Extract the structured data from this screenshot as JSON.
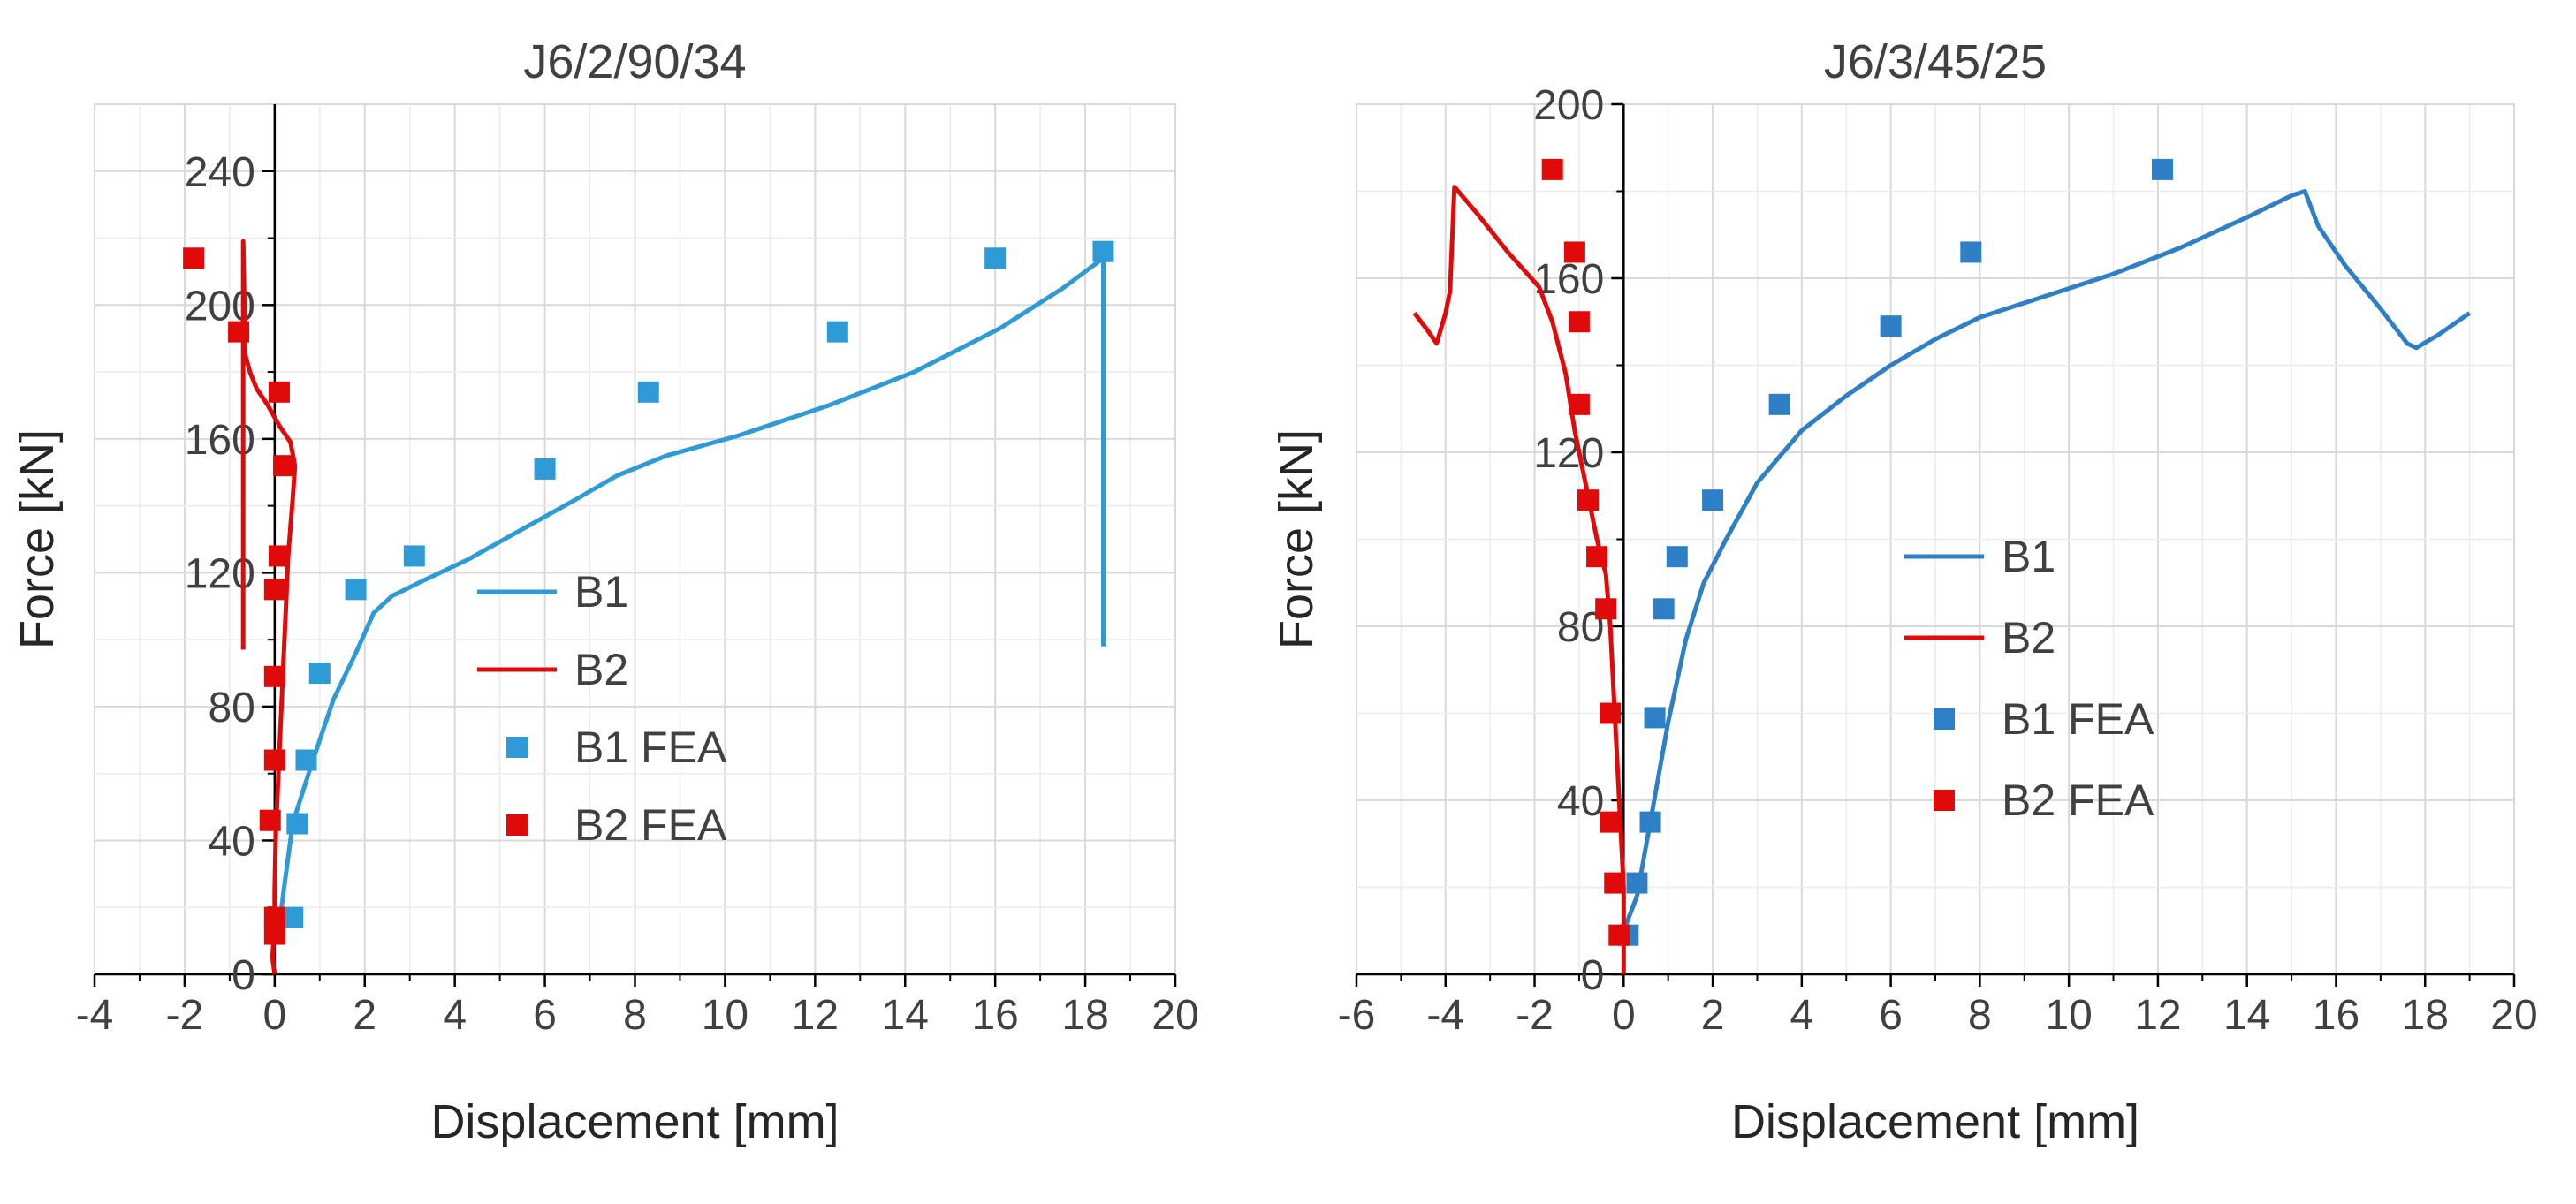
{
  "chart_data": [
    {
      "type": "scatter",
      "title": "J6/2/90/34",
      "xlabel": "Displacement  [mm]",
      "ylabel": "Force [kN]",
      "xlim": [
        -4,
        20
      ],
      "ylim": [
        0,
        260
      ],
      "xticks": [
        -4,
        -2,
        0,
        2,
        4,
        6,
        8,
        10,
        12,
        14,
        16,
        18,
        20
      ],
      "yticks": [
        0,
        40,
        80,
        120,
        160,
        200,
        240
      ],
      "xtick_labels": [
        "-4",
        "-2",
        "0",
        "2",
        "4",
        "6",
        "8",
        "10",
        "12",
        "14",
        "16",
        "18",
        "20"
      ],
      "ytick_labels": [
        "0",
        "40",
        "80",
        "120",
        "160",
        "200",
        "240"
      ],
      "grid": true,
      "legend_position": "center-right",
      "series": [
        {
          "name": "B1",
          "kind": "line",
          "color": "#2E9BD6",
          "x": [
            0.1,
            0.2,
            0.4,
            0.8,
            1.3,
            1.8,
            2.2,
            2.6,
            3.2,
            4.3,
            5.5,
            6.7,
            7.6,
            8.7,
            10.3,
            12.3,
            14.2,
            16.1,
            17.5,
            18.4,
            18.4,
            18.4
          ],
          "y": [
            14,
            25,
            45,
            62,
            82,
            96,
            108,
            113,
            117,
            124,
            133,
            142,
            149,
            155,
            161,
            170,
            180,
            193,
            205,
            214,
            216,
            98
          ]
        },
        {
          "name": "B2",
          "kind": "line",
          "color": "#E00A0A",
          "x": [
            -0.7,
            -0.7,
            -0.65,
            -0.55,
            -0.4,
            -0.15,
            0.1,
            0.35,
            0.45,
            0.4,
            0.3,
            0.25,
            0.2,
            0.15,
            0.1,
            0.05,
            0.02,
            0.0,
            0.0,
            -0.05,
            0.0
          ],
          "y": [
            97,
            219,
            185,
            180,
            175,
            170,
            164,
            159,
            152,
            142,
            125,
            110,
            95,
            80,
            65,
            50,
            40,
            25,
            15,
            5,
            0
          ]
        },
        {
          "name": "B1 FEA",
          "kind": "scatter",
          "color": "#2E9BD6",
          "x": [
            0.4,
            0.5,
            0.7,
            1.0,
            1.8,
            3.1,
            6.0,
            8.3,
            12.5,
            16.0,
            18.4
          ],
          "y": [
            17,
            45,
            64,
            90,
            115,
            125,
            151,
            174,
            192,
            214,
            216
          ]
        },
        {
          "name": "B2 FEA",
          "kind": "scatter",
          "color": "#E00A0A",
          "x": [
            -1.8,
            -0.8,
            0.1,
            0.2,
            0.1,
            0.0,
            0.0,
            0.0,
            -0.1,
            0.0,
            0.0
          ],
          "y": [
            214,
            192,
            174,
            152,
            125,
            115,
            89,
            64,
            46,
            17,
            12
          ]
        }
      ]
    },
    {
      "type": "scatter",
      "title": "J6/3/45/25",
      "xlabel": "Displacement  [mm]",
      "ylabel": "Force [kN]",
      "xlim": [
        -6,
        20
      ],
      "ylim": [
        0,
        200
      ],
      "xticks": [
        -6,
        -4,
        -2,
        0,
        2,
        4,
        6,
        8,
        10,
        12,
        14,
        16,
        18,
        20
      ],
      "yticks": [
        0,
        40,
        80,
        120,
        160,
        200
      ],
      "xtick_labels": [
        "-6",
        "-4",
        "-2",
        "0",
        "2",
        "4",
        "6",
        "8",
        "10",
        "12",
        "14",
        "16",
        "18",
        "20"
      ],
      "ytick_labels": [
        "0",
        "40",
        "80",
        "120",
        "160",
        "200"
      ],
      "grid": true,
      "legend_position": "center-right",
      "series": [
        {
          "name": "B1",
          "kind": "line",
          "color": "#2E7FC5",
          "x": [
            0.0,
            0.3,
            0.6,
            1.0,
            1.4,
            1.8,
            2.3,
            3.0,
            4.0,
            5.0,
            6.0,
            7.0,
            8.0,
            9.5,
            11.0,
            12.5,
            14.0,
            15.0,
            15.3,
            15.6,
            16.2,
            17.0,
            17.6,
            17.8,
            18.3,
            19.0
          ],
          "y": [
            10,
            18,
            35,
            58,
            77,
            90,
            100,
            113,
            125,
            133,
            140,
            146,
            151,
            156,
            161,
            167,
            174,
            179,
            180,
            172,
            163,
            153,
            145,
            144,
            147,
            152
          ]
        },
        {
          "name": "B2",
          "kind": "line",
          "color": "#E00A0A",
          "x": [
            -4.7,
            -4.4,
            -4.2,
            -4.0,
            -3.9,
            -3.8,
            -3.3,
            -2.6,
            -1.9,
            -1.6,
            -1.3,
            -1.1,
            -0.8,
            -0.6,
            -0.4,
            -0.3,
            -0.2,
            -0.1,
            0.0,
            0.0
          ],
          "y": [
            152,
            148,
            145,
            152,
            157,
            181,
            175,
            166,
            158,
            150,
            138,
            125,
            110,
            100,
            92,
            80,
            60,
            40,
            20,
            0
          ]
        },
        {
          "name": "B1 FEA",
          "kind": "scatter",
          "color": "#2E7FC5",
          "x": [
            0.1,
            0.3,
            0.6,
            0.7,
            0.9,
            1.2,
            2.0,
            3.5,
            6.0,
            7.8,
            12.1
          ],
          "y": [
            9,
            21,
            35,
            59,
            84,
            96,
            109,
            131,
            149,
            166,
            185
          ]
        },
        {
          "name": "B2 FEA",
          "kind": "scatter",
          "color": "#E00A0A",
          "x": [
            -1.6,
            -1.1,
            -1.0,
            -1.0,
            -0.8,
            -0.6,
            -0.4,
            -0.3,
            -0.3,
            -0.2,
            -0.1
          ],
          "y": [
            185,
            166,
            150,
            131,
            109,
            96,
            84,
            60,
            35,
            21,
            9
          ]
        }
      ]
    }
  ]
}
